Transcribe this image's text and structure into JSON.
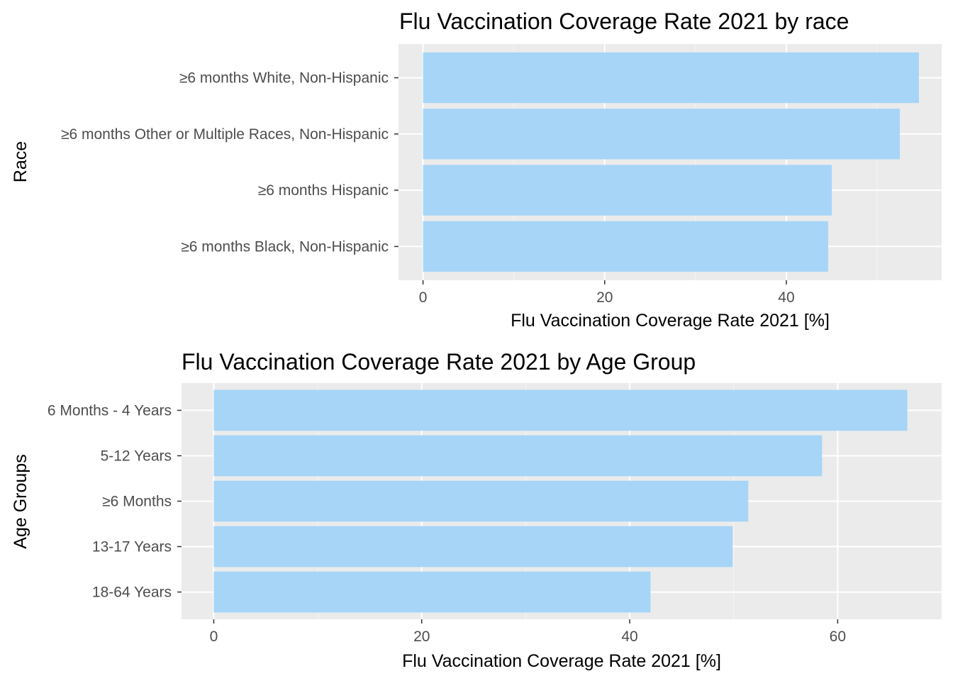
{
  "chart_data": [
    {
      "type": "bar",
      "orientation": "horizontal",
      "title": "Flu Vaccination Coverage Rate 2021 by race",
      "xlabel": "Flu Vaccination Coverage Rate 2021 [%]",
      "ylabel": "Race",
      "categories": [
        "≥6 months White, Non-Hispanic",
        "≥6 months Other or Multiple Races, Non-Hispanic",
        "≥6 months Hispanic",
        "≥6 months Black, Non-Hispanic"
      ],
      "values": [
        54.6,
        52.5,
        45.0,
        44.6
      ],
      "xlim": [
        -2.7,
        57.1
      ],
      "xticks": [
        0,
        20,
        40
      ],
      "grid": true,
      "bar_color": "#a6d5f7",
      "panel_color": "#ebebeb"
    },
    {
      "type": "bar",
      "orientation": "horizontal",
      "title": "Flu Vaccination Coverage Rate 2021 by Age Group",
      "xlabel": "Flu Vaccination Coverage Rate 2021 [%]",
      "ylabel": "Age Groups",
      "categories": [
        "6 Months - 4 Years",
        "5-12 Years",
        "≥6 Months",
        "13-17 Years",
        "18-64 Years"
      ],
      "values": [
        66.7,
        58.5,
        51.4,
        49.9,
        42.0
      ],
      "xlim": [
        -3.1,
        70.0
      ],
      "xticks": [
        0,
        20,
        40,
        60
      ],
      "grid": true,
      "bar_color": "#a6d5f7",
      "panel_color": "#ebebeb"
    }
  ]
}
